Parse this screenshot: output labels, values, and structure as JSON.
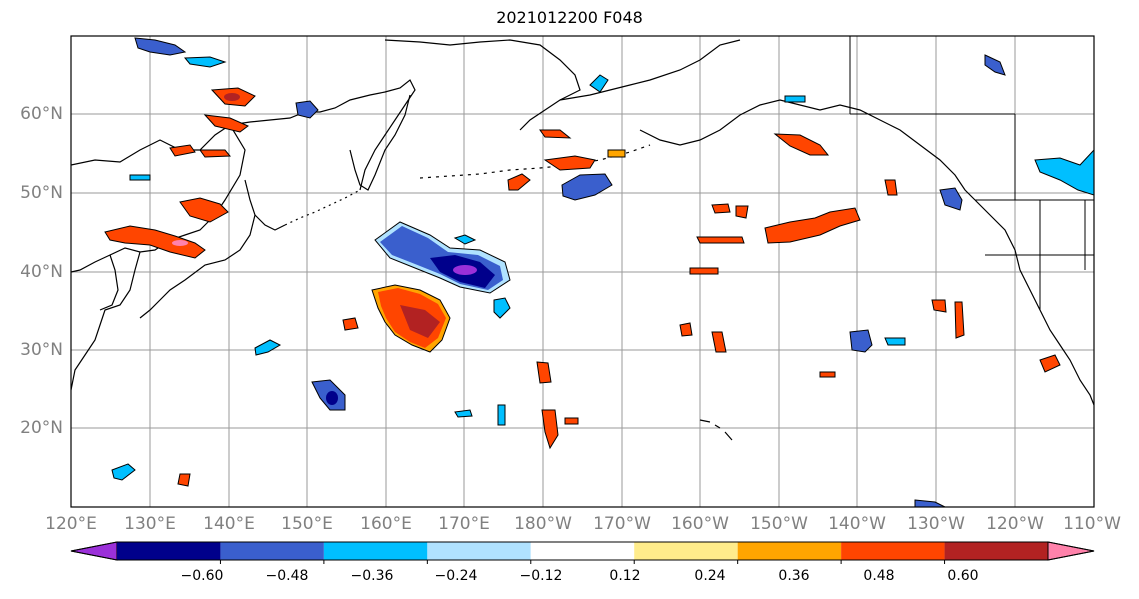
{
  "title": "2021012200 F048",
  "lat_labels": [
    "60°N",
    "50°N",
    "40°N",
    "30°N",
    "20°N"
  ],
  "lon_labels": [
    "120°E",
    "130°E",
    "140°E",
    "150°E",
    "160°E",
    "170°E",
    "180°W",
    "170°W",
    "160°W",
    "150°W",
    "140°W",
    "130°W",
    "120°W",
    "110°W"
  ],
  "colorbar": {
    "labels": [
      "−0.60",
      "−0.48",
      "−0.36",
      "−0.24",
      "−0.12",
      "0.12",
      "0.24",
      "0.36",
      "0.48",
      "0.60"
    ],
    "colors": [
      "#9b30d9",
      "#00008b",
      "#3a5fcd",
      "#00bfff",
      "#b0e2ff",
      "#ffffff",
      "#ffec8b",
      "#ffa500",
      "#ff4500",
      "#b22222",
      "#ff82ab"
    ]
  }
}
